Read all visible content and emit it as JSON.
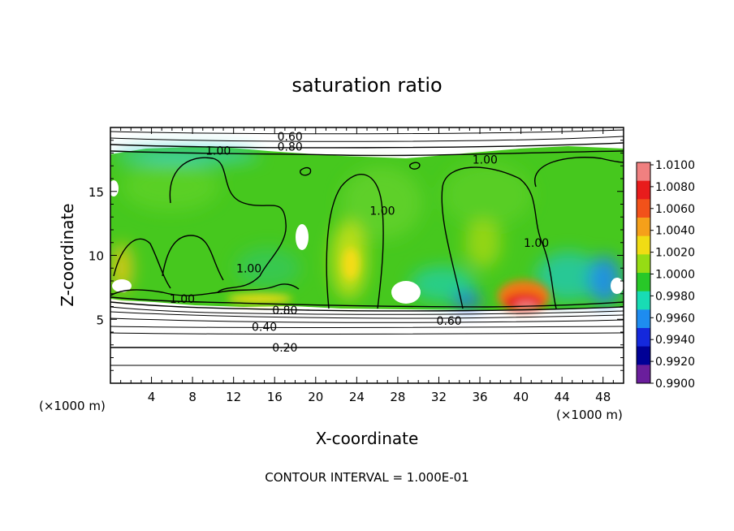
{
  "chart_data": {
    "type": "heatmap",
    "title": "saturation ratio",
    "xlabel": "X-coordinate",
    "ylabel": "Z-coordinate",
    "x_unit": "(×1000 m)",
    "y_unit": "(×1000 m)",
    "xlim": [
      0,
      50
    ],
    "ylim": [
      0,
      20
    ],
    "x_ticks": [
      4,
      8,
      12,
      16,
      20,
      24,
      28,
      32,
      36,
      40,
      44,
      48
    ],
    "y_ticks": [
      5,
      10,
      15
    ],
    "footer": "CONTOUR INTERVAL = 1.000E-01",
    "colorbar": {
      "labels": [
        "1.0100",
        "1.0080",
        "1.0060",
        "1.0040",
        "1.0020",
        "1.0000",
        "0.9980",
        "0.9960",
        "0.9940",
        "0.9920",
        "0.9900"
      ],
      "colors": [
        "#f08080",
        "#e81c1c",
        "#f2521a",
        "#f5a01a",
        "#f0dc14",
        "#96dc14",
        "#28c828",
        "#18dcb4",
        "#1e8cf0",
        "#1428dc",
        "#000096",
        "#6a1e9c"
      ]
    },
    "contour_labels": [
      {
        "text": "0.60",
        "x": 17.5,
        "y": 19.3
      },
      {
        "text": "0.80",
        "x": 17.5,
        "y": 18.5
      },
      {
        "text": "1.00",
        "x": 10.5,
        "y": 18.2
      },
      {
        "text": "1.00",
        "x": 36.5,
        "y": 17.5
      },
      {
        "text": "1.00",
        "x": 26.5,
        "y": 13.5
      },
      {
        "text": "1.00",
        "x": 41.5,
        "y": 11.0
      },
      {
        "text": "1.00",
        "x": 13.5,
        "y": 9.0
      },
      {
        "text": "1.00",
        "x": 7.0,
        "y": 6.6
      },
      {
        "text": "0.80",
        "x": 17.0,
        "y": 5.7
      },
      {
        "text": "0.40",
        "x": 15.0,
        "y": 4.4
      },
      {
        "text": "0.60",
        "x": 33.0,
        "y": 4.9
      },
      {
        "text": "0.20",
        "x": 17.0,
        "y": 2.8
      }
    ]
  }
}
